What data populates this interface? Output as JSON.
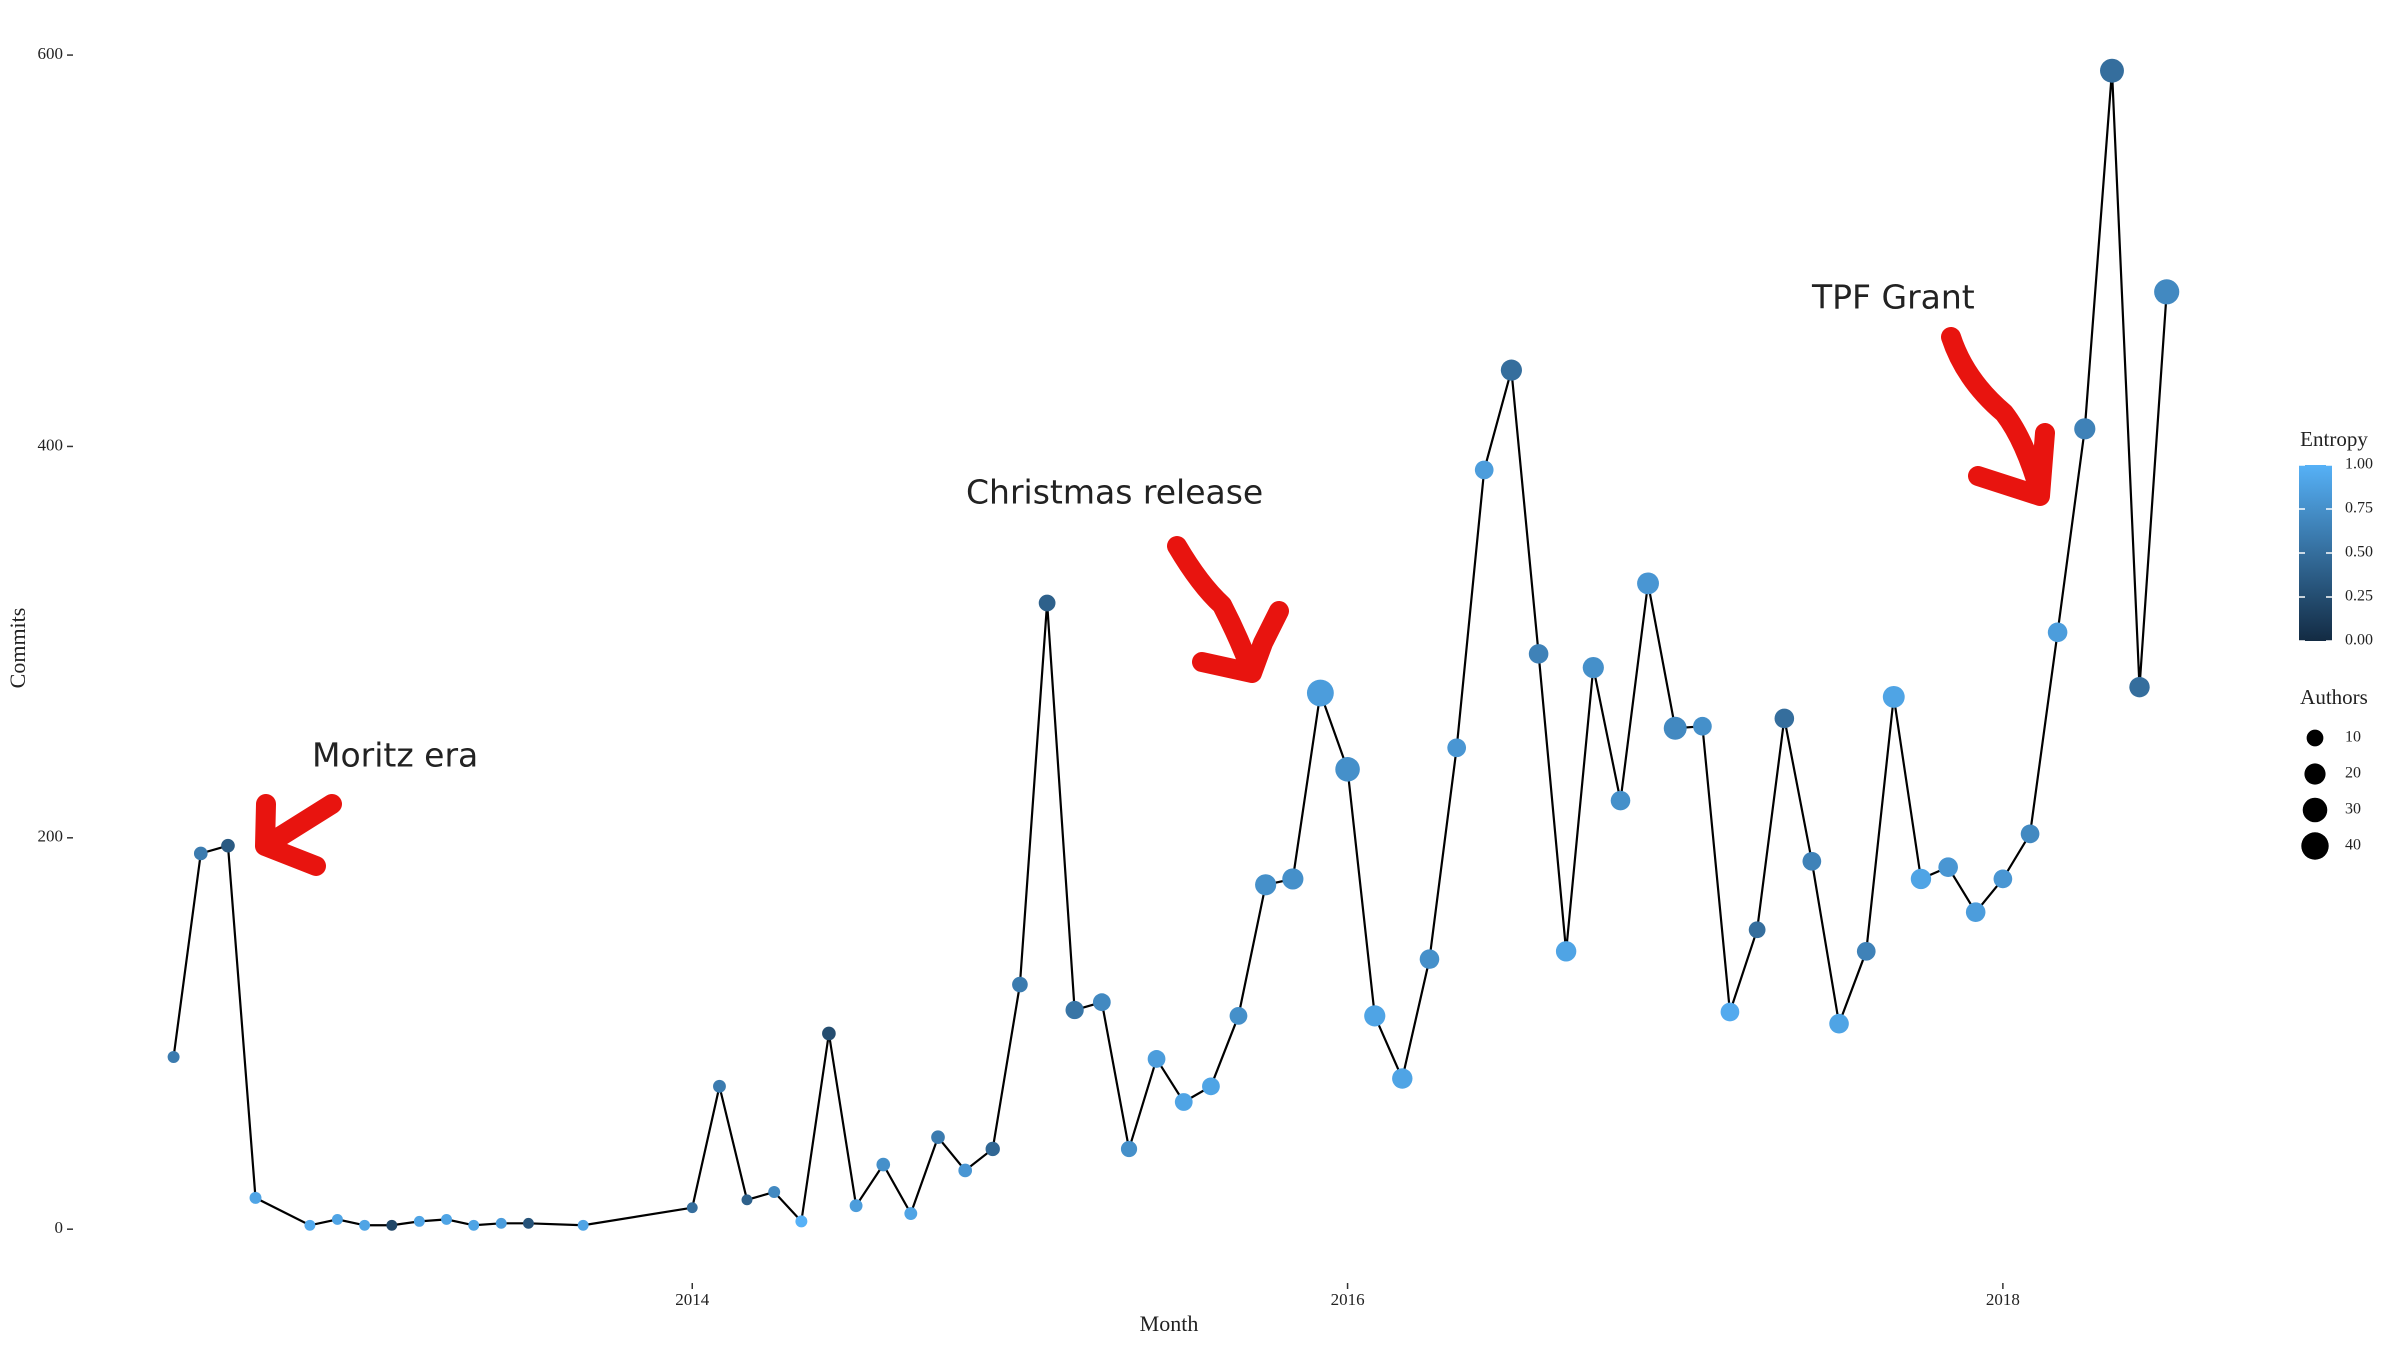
{
  "chart_data": {
    "type": "line",
    "x_label": "Month",
    "y_label": "Commits",
    "x": [
      2012.417,
      2012.5,
      2012.583,
      2012.667,
      2012.833,
      2012.917,
      2013,
      2013.083,
      2013.167,
      2013.25,
      2013.333,
      2013.417,
      2013.5,
      2013.667,
      2014,
      2014.083,
      2014.167,
      2014.25,
      2014.333,
      2014.417,
      2014.5,
      2014.583,
      2014.667,
      2014.75,
      2014.833,
      2014.917,
      2015,
      2015.083,
      2015.167,
      2015.25,
      2015.333,
      2015.417,
      2015.5,
      2015.583,
      2015.667,
      2015.75,
      2015.833,
      2015.917,
      2016,
      2016.083,
      2016.167,
      2016.25,
      2016.333,
      2016.417,
      2016.5,
      2016.583,
      2016.667,
      2016.75,
      2016.833,
      2016.917,
      2017,
      2017.083,
      2017.167,
      2017.25,
      2017.333,
      2017.417,
      2017.5,
      2017.583,
      2017.667,
      2017.75,
      2017.833,
      2017.917,
      2018,
      2018.083,
      2018.167,
      2018.25,
      2018.333,
      2018.417,
      2018.5
    ],
    "values": [
      88,
      192,
      196,
      16,
      2,
      5,
      2,
      2,
      4,
      5,
      2,
      3,
      3,
      2,
      11,
      73,
      15,
      19,
      4,
      100,
      12,
      33,
      8,
      47,
      30,
      41,
      125,
      320,
      112,
      116,
      41,
      87,
      65,
      73,
      109,
      176,
      179,
      274,
      235,
      109,
      77,
      138,
      246,
      388,
      439,
      294,
      142,
      287,
      219,
      330,
      256,
      257,
      111,
      153,
      261,
      188,
      105,
      142,
      272,
      179,
      185,
      162,
      179,
      202,
      305,
      409,
      592,
      277,
      479
    ],
    "sizes": [
      3,
      5,
      5,
      3,
      2,
      2,
      2,
      2,
      2,
      2,
      2,
      2,
      2,
      2,
      2,
      4,
      2,
      3,
      3,
      5,
      4,
      5,
      4,
      5,
      5,
      6,
      8,
      10,
      13,
      12,
      9,
      12,
      12,
      12,
      12,
      20,
      20,
      38,
      30,
      20,
      18,
      16,
      14,
      14,
      20,
      16,
      18,
      20,
      16,
      22,
      25,
      14,
      14,
      10,
      16,
      14,
      16,
      14,
      22,
      18,
      16,
      16,
      14,
      14,
      16,
      20,
      28,
      18,
      32
    ],
    "color_values": [
      0.6,
      0.6,
      0.35,
      0.9,
      0.95,
      0.9,
      0.9,
      0.2,
      0.9,
      0.9,
      0.9,
      0.85,
      0.3,
      0.9,
      0.5,
      0.6,
      0.4,
      0.7,
      1,
      0.25,
      0.85,
      0.75,
      0.9,
      0.6,
      0.8,
      0.45,
      0.6,
      0.4,
      0.55,
      0.7,
      0.75,
      0.85,
      0.9,
      0.9,
      0.75,
      0.75,
      0.75,
      0.85,
      0.75,
      0.9,
      0.9,
      0.75,
      0.8,
      0.85,
      0.5,
      0.65,
      0.9,
      0.75,
      0.75,
      0.8,
      0.7,
      0.75,
      0.95,
      0.5,
      0.5,
      0.65,
      0.9,
      0.65,
      0.9,
      0.9,
      0.8,
      0.85,
      0.8,
      0.7,
      0.85,
      0.65,
      0.5,
      0.5,
      0.7
    ],
    "line_color": "#000000",
    "xlim": [
      2012.11,
      2018.8
    ],
    "xticks": [
      2014,
      2016,
      2018
    ],
    "ylim": [
      -27.5,
      621.5
    ],
    "yticks": [
      0,
      200,
      400,
      600
    ],
    "grid": false,
    "color_legend": {
      "title": "Entropy",
      "clim": [
        0,
        1
      ],
      "colors": [
        "#132B43",
        "#56B1F7"
      ],
      "ticks": [
        {
          "value": 0,
          "label": "0.00"
        },
        {
          "value": 0.25,
          "label": "0.25"
        },
        {
          "value": 0.5,
          "label": "0.50"
        },
        {
          "value": 0.75,
          "label": "0.75"
        },
        {
          "value": 1,
          "label": "1.00"
        }
      ]
    },
    "size_legend": {
      "title": "Authors",
      "values": [
        10,
        20,
        30,
        40
      ]
    },
    "annotations": [
      "Moritz era",
      "Christmas release",
      "TPF Grant"
    ]
  }
}
